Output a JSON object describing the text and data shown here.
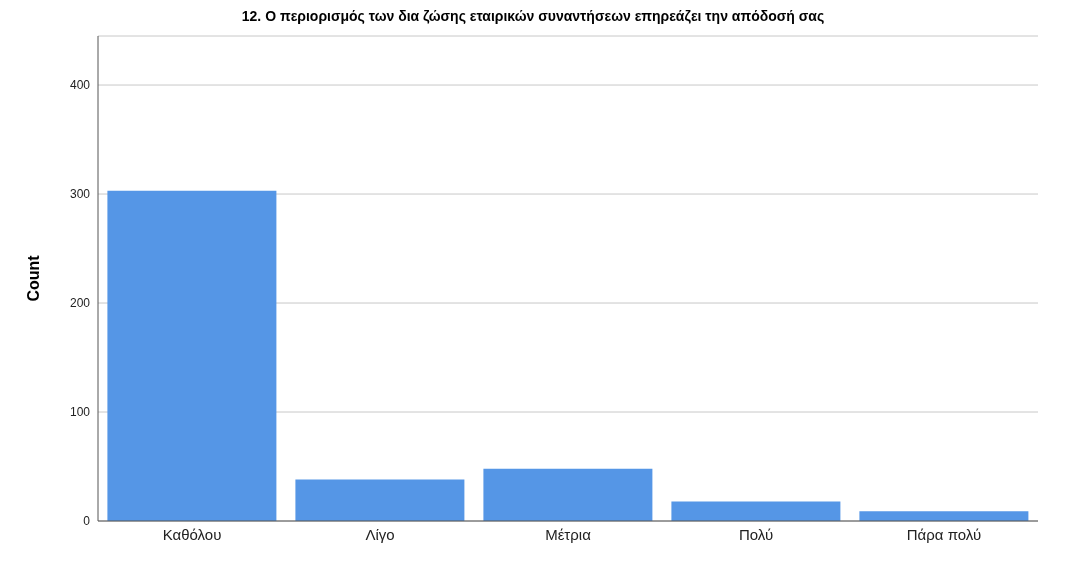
{
  "chart_data": {
    "type": "bar",
    "title": "12. Ο περιορισμός των δια ζώσης εταιρικών συναντήσεων επηρεάζει την απόδοσή σας",
    "ylabel": "Count",
    "categories": [
      "Καθόλου",
      "Λίγο",
      "Μέτρια",
      "Πολύ",
      "Πάρα πολύ"
    ],
    "values": [
      303,
      38,
      48,
      18,
      9
    ],
    "color": "#5596e6",
    "ylim": [
      0,
      445
    ],
    "yticks": [
      0,
      100,
      200,
      300,
      400
    ],
    "grid": "y"
  }
}
